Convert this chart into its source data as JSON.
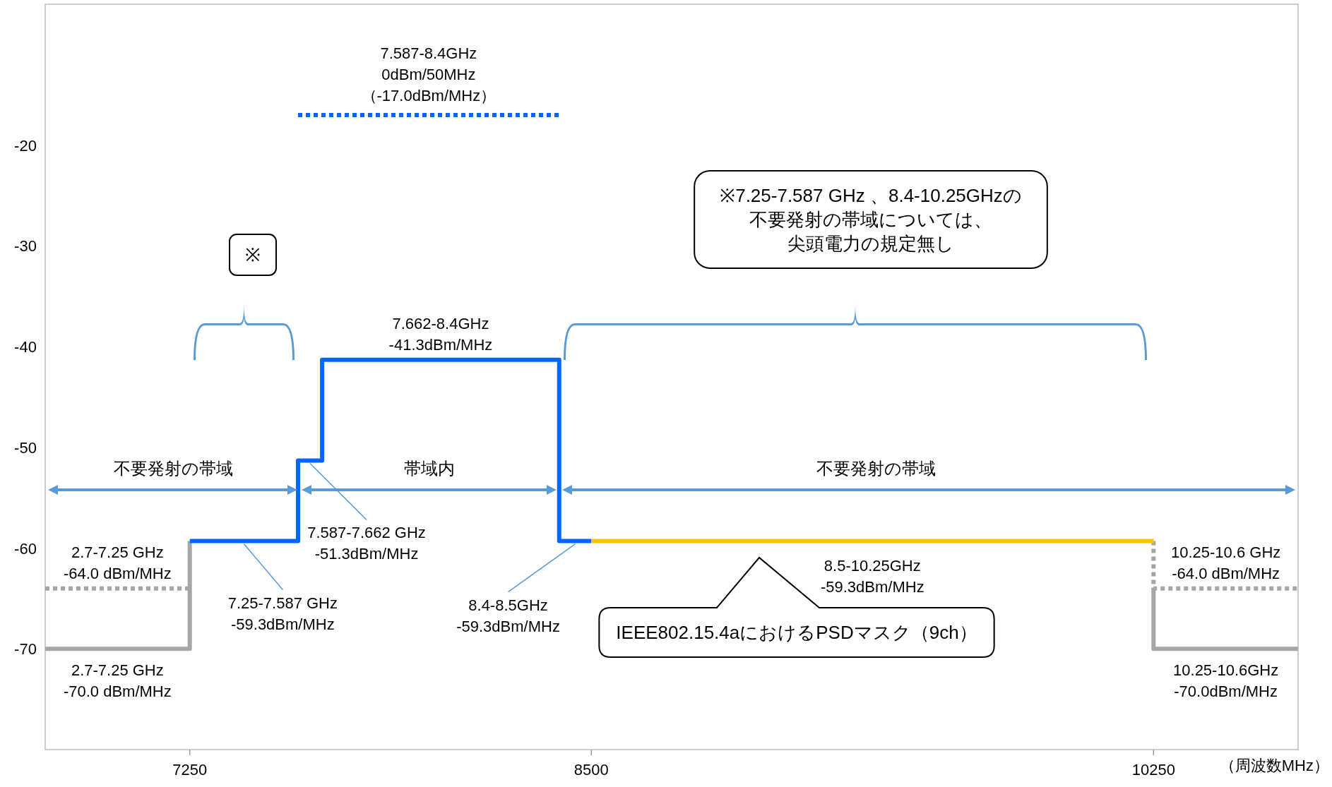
{
  "chart_data": {
    "type": "line",
    "xlabel": "（周波数MHz）",
    "xlim": [
      6800,
      10700
    ],
    "xticks": [
      7250,
      8500,
      10250
    ],
    "ylim": [
      -80,
      -6
    ],
    "yticks": [
      -20,
      -30,
      -40,
      -50,
      -60,
      -70
    ],
    "grid": false,
    "series": [
      {
        "color": "#a6a6a6",
        "line_style": "solid",
        "x": [
          6800,
          7250,
          7250
        ],
        "values": [
          -70,
          -70,
          -59.3
        ]
      },
      {
        "color": "#a6a6a6",
        "line_style": "dotted",
        "x": [
          6800,
          7250
        ],
        "values": [
          -64,
          -64
        ]
      },
      {
        "color": "#a6a6a6",
        "line_style": "solid",
        "x": [
          10250,
          10250,
          10700
        ],
        "values": [
          -64,
          -70,
          -70
        ]
      },
      {
        "color": "#a6a6a6",
        "line_style": "dotted",
        "x": [
          10250,
          10250,
          10700
        ],
        "values": [
          -59.3,
          -64,
          -64
        ]
      },
      {
        "color": "#0066ff",
        "line_style": "solid",
        "x": [
          7250,
          7587,
          7587,
          7662,
          7662,
          8400,
          8400,
          8500
        ],
        "values": [
          -59.3,
          -59.3,
          -51.3,
          -51.3,
          -41.3,
          -41.3,
          -59.3,
          -59.3
        ]
      },
      {
        "color": "#ffc000",
        "line_style": "solid",
        "x": [
          8500,
          10250
        ],
        "values": [
          -59.3,
          -59.3
        ]
      },
      {
        "color": "#0066ff",
        "line_style": "dotted",
        "x": [
          7587,
          8400
        ],
        "values": [
          -17,
          -17
        ]
      }
    ],
    "annotations": [
      {
        "text": "7.587-8.4GHz\n0dBm/50MHz\n（-17.0dBm/MHz）",
        "x": 7993.5,
        "y": -17
      },
      {
        "text": "7.662-8.4GHz\n-41.3dBm/MHz",
        "x": 8031,
        "y": -41.3
      },
      {
        "text": "7.587-7.662 GHz\n-51.3dBm/MHz",
        "x": 7624.5,
        "y": -51.3
      },
      {
        "text": "7.25-7.587 GHz\n-59.3dBm/MHz",
        "x": 7418.5,
        "y": -59.3
      },
      {
        "text": "8.4-8.5GHz\n-59.3dBm/MHz",
        "x": 8450,
        "y": -59.3
      },
      {
        "text": "8.5-10.25GHz\n-59.3dBm/MHz",
        "x": 9375,
        "y": -59.3
      },
      {
        "text": "2.7-7.25 GHz\n-64.0 dBm/MHz",
        "x": 7025,
        "y": -64
      },
      {
        "text": "2.7-7.25 GHz\n-70.0 dBm/MHz",
        "x": 7025,
        "y": -70
      },
      {
        "text": "10.25-10.6 GHz\n-64.0 dBm/MHz",
        "x": 10475,
        "y": -64
      },
      {
        "text": "10.25-10.6GHz\n-70.0dBm/MHz",
        "x": 10475,
        "y": -70
      },
      "IEEE802.15.4aにおけるPSDマスク（9ch）",
      "不要発射の帯域",
      "帯域内",
      "不要発射の帯域",
      "※",
      "※7.25-7.587 GHz 、8.4-10.25GHzの",
      "不要発射の帯域については、",
      "尖頭電力の規定無し"
    ]
  }
}
